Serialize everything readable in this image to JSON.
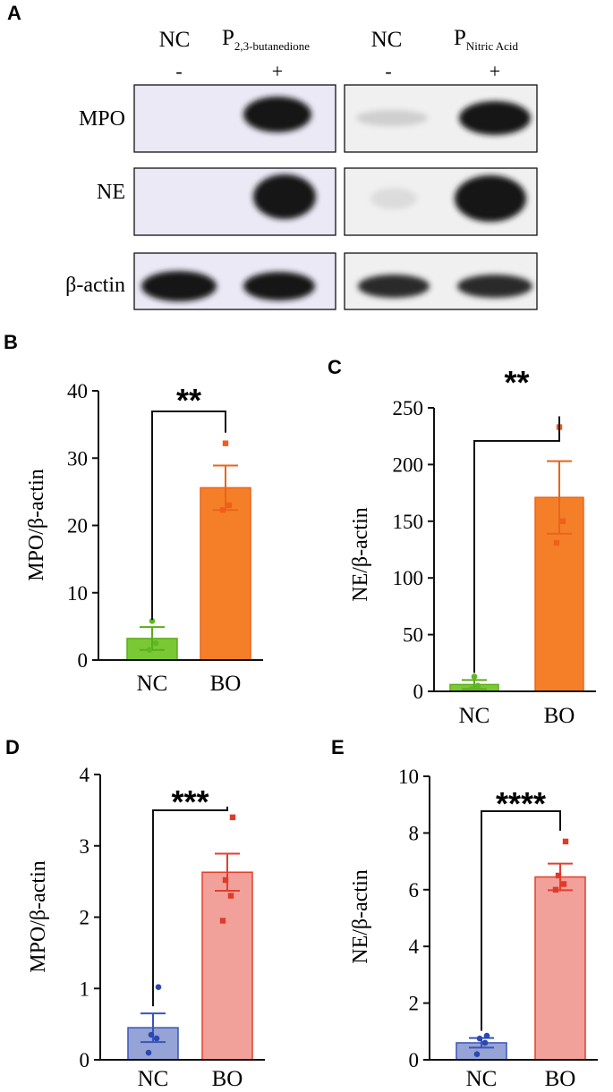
{
  "panel_letters": {
    "a": "A",
    "b": "B",
    "c": "C",
    "d": "D",
    "e": "E"
  },
  "western_blot": {
    "groups": [
      {
        "name": "NC",
        "sign": "-"
      },
      {
        "name": "P",
        "subscript": "2,3-butanedione",
        "sign": "+"
      },
      {
        "name": "NC",
        "sign": "-"
      },
      {
        "name": "P",
        "subscript": "Nitric Acid",
        "sign": "+"
      }
    ],
    "rows": [
      "MPO",
      "NE",
      "β-actin"
    ],
    "colors": {
      "left_background": "#ebe9f5",
      "right_background": "#f0f0f0",
      "band": "#151515"
    }
  },
  "chart_data": [
    {
      "panel": "B",
      "type": "bar",
      "categories": [
        "NC",
        "BO"
      ],
      "values": [
        3.2,
        25.6
      ],
      "sem": [
        1.7,
        3.3
      ],
      "points": [
        [
          1.5,
          2.5,
          5.8
        ],
        [
          22.3,
          23.0,
          32.2
        ]
      ],
      "ylabel": "MPO/β-actin",
      "xlabel": "",
      "ylim": [
        0,
        40
      ],
      "yticks": [
        0,
        10,
        20,
        30,
        40
      ],
      "significance": "**",
      "colors": {
        "fill": [
          "#7ac934",
          "#f57f29"
        ],
        "edge": [
          "#5aad1a",
          "#e8651a"
        ],
        "point": [
          "#5fb823",
          "#f05f1a"
        ]
      }
    },
    {
      "panel": "C",
      "type": "bar",
      "categories": [
        "NC",
        "BO"
      ],
      "values": [
        6,
        171
      ],
      "sem": [
        4,
        32
      ],
      "points": [
        [
          2,
          5,
          13
        ],
        [
          131,
          150,
          233
        ]
      ],
      "ylabel": "NE/β-actin",
      "xlabel": "",
      "ylim": [
        0,
        250
      ],
      "yticks": [
        0,
        50,
        100,
        150,
        200,
        250
      ],
      "significance": "**",
      "colors": {
        "fill": [
          "#7ac934",
          "#f57f29"
        ],
        "edge": [
          "#5aad1a",
          "#e8651a"
        ],
        "point": [
          "#5fb823",
          "#f05f1a"
        ]
      }
    },
    {
      "panel": "D",
      "type": "bar",
      "categories": [
        "NC",
        "BO"
      ],
      "values": [
        0.45,
        2.63
      ],
      "sem": [
        0.2,
        0.26
      ],
      "points": [
        [
          0.1,
          0.3,
          0.35,
          1.02
        ],
        [
          1.95,
          2.3,
          2.52,
          3.4
        ]
      ],
      "ylabel": "MPO/β-actin",
      "xlabel": "",
      "ylim": [
        0,
        4
      ],
      "yticks": [
        0,
        1,
        2,
        3,
        4
      ],
      "significance": "***",
      "colors": {
        "fill": [
          "#95a3d6",
          "#f2a19a"
        ],
        "edge": [
          "#3a55b8",
          "#e0402f"
        ],
        "point": [
          "#2a48b0",
          "#e03a2a"
        ]
      }
    },
    {
      "panel": "E",
      "type": "bar",
      "categories": [
        "NC",
        "BO"
      ],
      "values": [
        0.6,
        6.45
      ],
      "sem": [
        0.17,
        0.47
      ],
      "points": [
        [
          0.2,
          0.6,
          0.75,
          0.85
        ],
        [
          6.0,
          6.2,
          6.5,
          7.7
        ]
      ],
      "ylabel": "NE/β-actin",
      "xlabel": "",
      "ylim": [
        0,
        10
      ],
      "yticks": [
        0,
        2,
        4,
        6,
        8,
        10
      ],
      "significance": "****",
      "colors": {
        "fill": [
          "#95a3d6",
          "#f2a19a"
        ],
        "edge": [
          "#3a55b8",
          "#e0402f"
        ],
        "point": [
          "#2a48b0",
          "#e03a2a"
        ]
      }
    }
  ]
}
